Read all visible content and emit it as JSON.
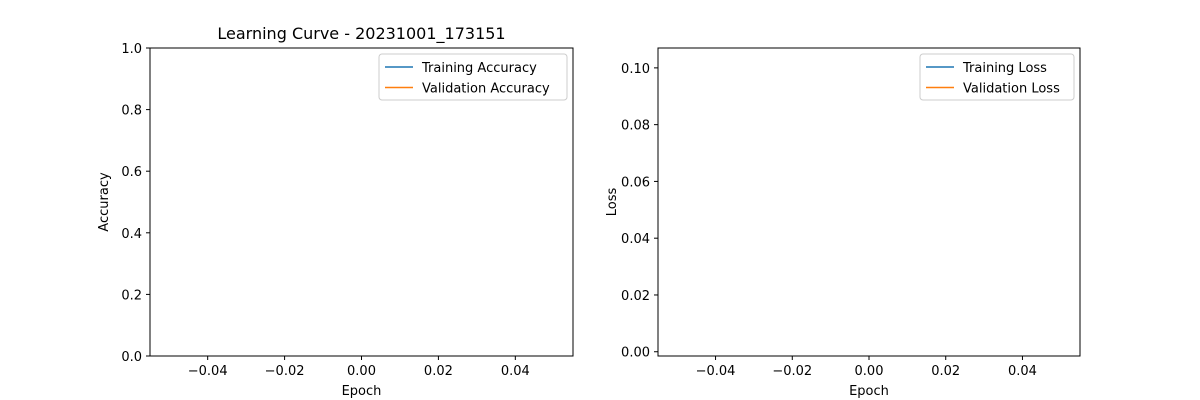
{
  "chart_data": [
    {
      "type": "line",
      "title": "Learning Curve - 20231001_173151",
      "xlabel": "Epoch",
      "ylabel": "Accuracy",
      "xlim": [
        -0.055,
        0.055
      ],
      "ylim": [
        0.0,
        1.0
      ],
      "xticks": [
        "−0.04",
        "−0.02",
        "0.00",
        "0.02",
        "0.04"
      ],
      "xtick_values": [
        -0.04,
        -0.02,
        0.0,
        0.02,
        0.04
      ],
      "yticks": [
        "0.0",
        "0.2",
        "0.4",
        "0.6",
        "0.8",
        "1.0"
      ],
      "ytick_values": [
        0.0,
        0.2,
        0.4,
        0.6,
        0.8,
        1.0
      ],
      "grid": false,
      "legend_position": "top-right",
      "series": [
        {
          "name": "Training Accuracy",
          "color": "#1f77b4",
          "x": [],
          "y": []
        },
        {
          "name": "Validation Accuracy",
          "color": "#ff7f0e",
          "x": [],
          "y": []
        }
      ]
    },
    {
      "type": "line",
      "title": "",
      "xlabel": "Epoch",
      "ylabel": "Loss",
      "xlim": [
        -0.055,
        0.055
      ],
      "ylim": [
        -0.0015,
        0.107
      ],
      "xticks": [
        "−0.04",
        "−0.02",
        "0.00",
        "0.02",
        "0.04"
      ],
      "xtick_values": [
        -0.04,
        -0.02,
        0.0,
        0.02,
        0.04
      ],
      "yticks": [
        "0.00",
        "0.02",
        "0.04",
        "0.06",
        "0.08",
        "0.10"
      ],
      "ytick_values": [
        0.0,
        0.02,
        0.04,
        0.06,
        0.08,
        0.1
      ],
      "grid": false,
      "legend_position": "top-right",
      "series": [
        {
          "name": "Training Loss",
          "color": "#1f77b4",
          "x": [],
          "y": []
        },
        {
          "name": "Validation Loss",
          "color": "#ff7f0e",
          "x": [],
          "y": []
        }
      ]
    }
  ]
}
